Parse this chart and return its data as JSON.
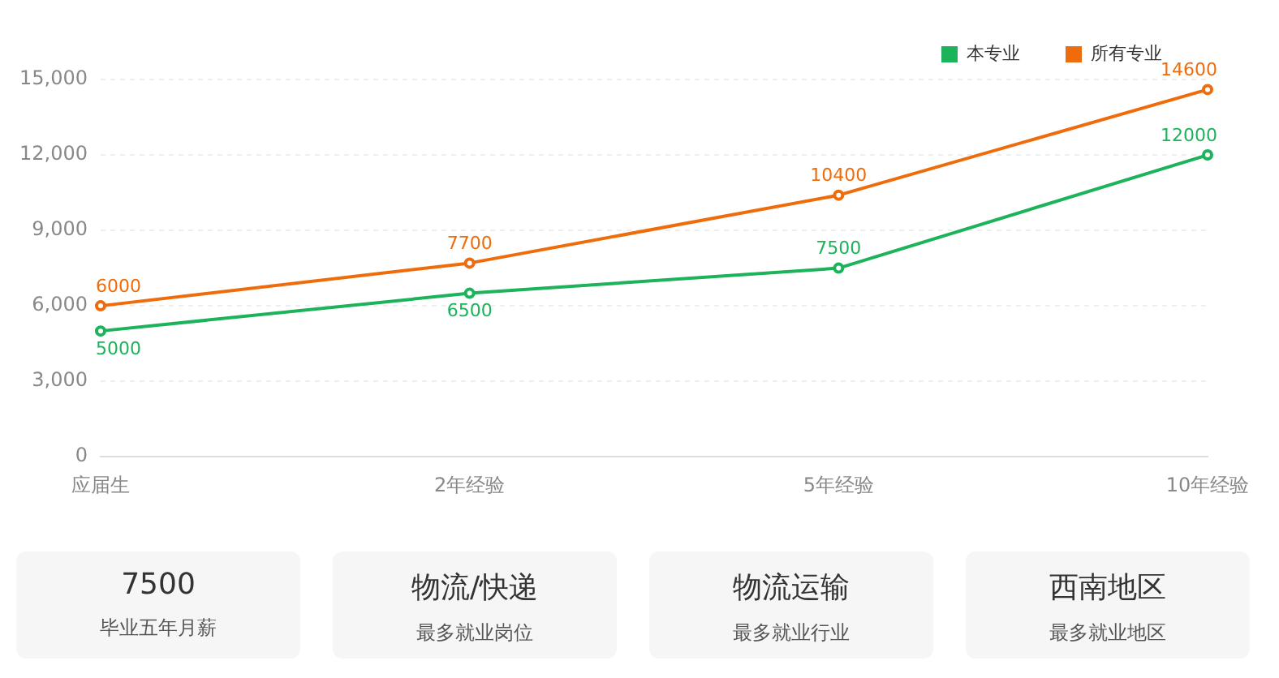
{
  "chart_data": [
    {
      "type": "line",
      "categories": [
        "应届生",
        "2年经验",
        "5年经验",
        "10年经验"
      ],
      "series": [
        {
          "name": "本专业",
          "color": "#1db35a",
          "values": [
            5000,
            6500,
            7500,
            12000
          ]
        },
        {
          "name": "所有专业",
          "color": "#ef6c0c",
          "values": [
            6000,
            7700,
            10400,
            14600
          ]
        }
      ],
      "ylim": [
        0,
        15000
      ],
      "yticks": [
        {
          "value": 0,
          "label": "0"
        },
        {
          "value": 3000,
          "label": "3,000"
        },
        {
          "value": 6000,
          "label": "6,000"
        },
        {
          "value": 9000,
          "label": "9,000"
        },
        {
          "value": 12000,
          "label": "12,000"
        },
        {
          "value": 15000,
          "label": "15,000"
        }
      ],
      "grid": "y",
      "legend": "top right",
      "marker": "circle",
      "line_style": "solid",
      "data_labels": true
    },
    {
      "type": "other",
      "annotations": [
        "7500",
        "毕业五年月薪",
        "物流/快递",
        "最多就业岗位",
        "物流运输",
        "最多就业行业",
        "西南地区",
        "最多就业地区"
      ]
    }
  ]
}
